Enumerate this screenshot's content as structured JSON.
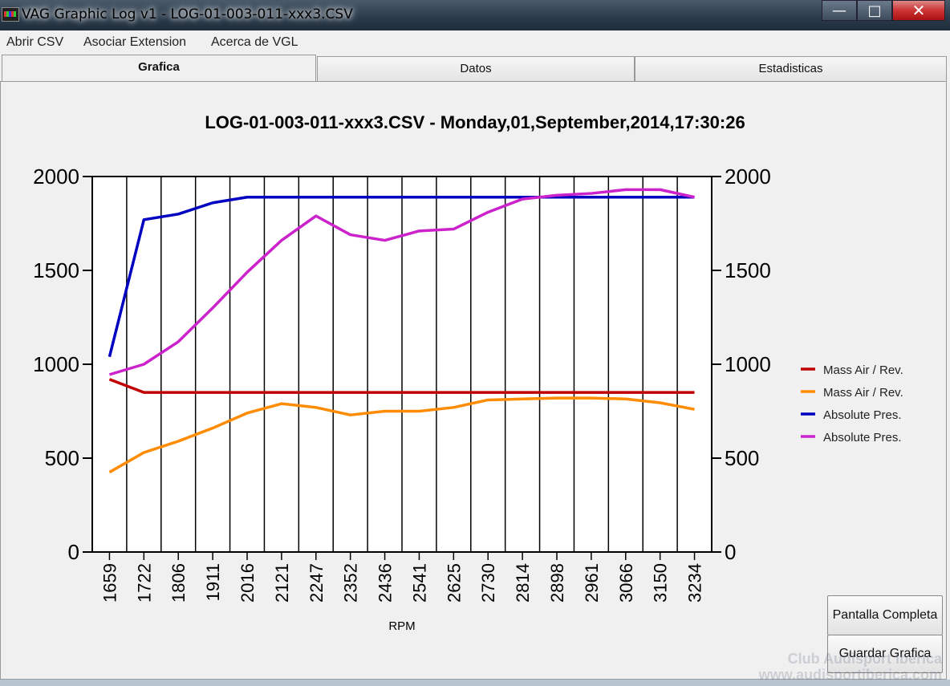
{
  "window": {
    "title": "VAG Graphic Log  v1 -  LOG-01-003-011-xxx3.CSV",
    "min_glyph": "—",
    "max_glyph": "□",
    "close_glyph": "✕"
  },
  "menu": {
    "items": [
      "Abrir CSV",
      "Asociar Extension",
      "Acerca de VGL"
    ]
  },
  "tabs": [
    {
      "label": "Grafica",
      "active": true
    },
    {
      "label": "Datos",
      "active": false
    },
    {
      "label": "Estadisticas",
      "active": false
    }
  ],
  "buttons": {
    "fullscreen": "Pantalla Completa",
    "save_chart": "Guardar Grafica"
  },
  "watermark": {
    "line1": "Club Audisport Iberica",
    "line2": "www.audisportiberica.com"
  },
  "chart_data": {
    "type": "line",
    "title": "LOG-01-003-011-xxx3.CSV - Monday,01,September,2014,17:30:26",
    "xlabel": "RPM",
    "ylabel": "",
    "categories": [
      "1659",
      "1722",
      "1806",
      "1911",
      "2016",
      "2121",
      "2247",
      "2352",
      "2436",
      "2541",
      "2625",
      "2730",
      "2814",
      "2898",
      "2961",
      "3066",
      "3150",
      "3234"
    ],
    "ylim": [
      0,
      2000
    ],
    "yticks": [
      0,
      500,
      1000,
      1500,
      2000
    ],
    "grid": "vertical",
    "legend_position": "right",
    "series": [
      {
        "name": "Mass Air / Rev.",
        "color": "#c00000",
        "values": [
          920,
          850,
          850,
          850,
          850,
          850,
          850,
          850,
          850,
          850,
          850,
          850,
          850,
          850,
          850,
          850,
          850,
          850
        ]
      },
      {
        "name": "Mass Air / Rev.",
        "color": "#ff8c00",
        "values": [
          425,
          530,
          590,
          660,
          740,
          790,
          770,
          730,
          750,
          750,
          770,
          810,
          815,
          820,
          820,
          815,
          795,
          760
        ]
      },
      {
        "name": "Absolute Pres.",
        "color": "#0000c0",
        "values": [
          1040,
          1770,
          1800,
          1860,
          1890,
          1890,
          1890,
          1890,
          1890,
          1890,
          1890,
          1890,
          1890,
          1890,
          1890,
          1890,
          1890,
          1890
        ]
      },
      {
        "name": "Absolute Pres.",
        "color": "#cc22cc",
        "values": [
          945,
          1000,
          1120,
          1300,
          1490,
          1660,
          1790,
          1690,
          1660,
          1710,
          1720,
          1810,
          1880,
          1900,
          1910,
          1930,
          1930,
          1890
        ]
      }
    ]
  }
}
